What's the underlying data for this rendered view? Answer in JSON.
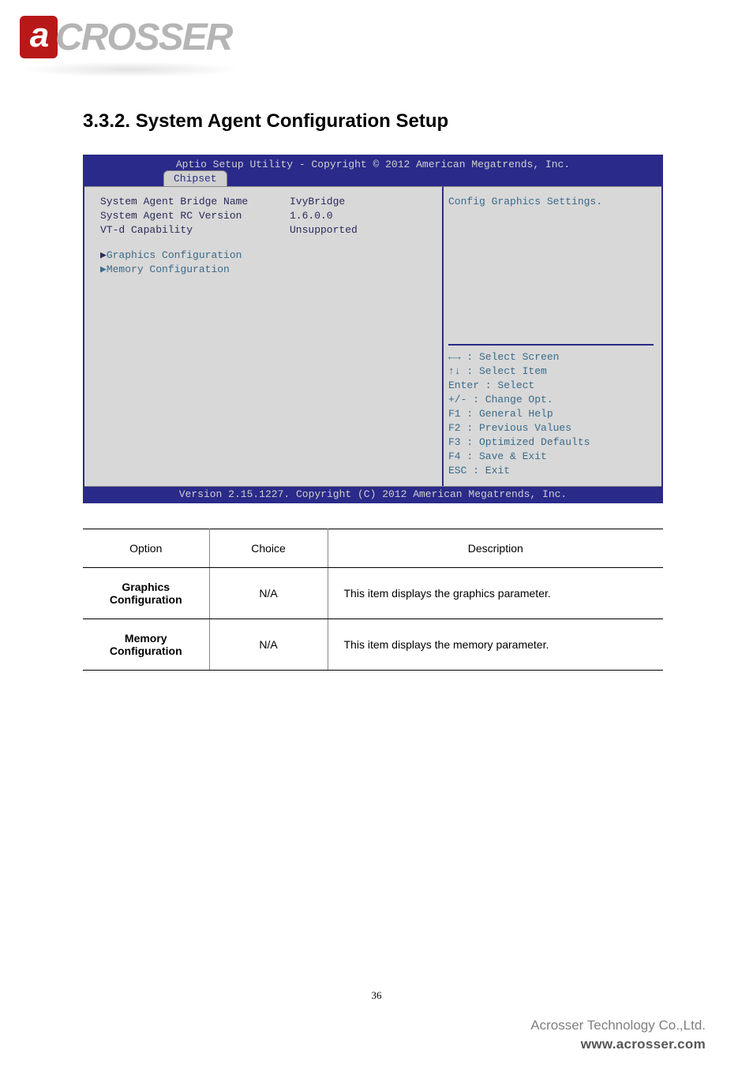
{
  "logo": {
    "letter": "a",
    "rest": "CROSSER"
  },
  "section": {
    "title": "3.3.2. System Agent Configuration Setup"
  },
  "bios": {
    "header": "Aptio Setup Utility - Copyright © 2012 American Megatrends, Inc.",
    "tab": "Chipset",
    "rows": [
      {
        "k": "System Agent Bridge Name",
        "v": "IvyBridge"
      },
      {
        "k": "System Agent RC Version",
        "v": "1.6.0.0"
      },
      {
        "k": "VT-d Capability",
        "v": "Unsupported"
      }
    ],
    "nav_items": [
      {
        "label": "Graphics Configuration",
        "selected": true
      },
      {
        "label": "Memory Configuration",
        "selected": false
      }
    ],
    "right_top": "Config Graphics Settings.",
    "help": [
      "←→ : Select Screen",
      "↑↓ : Select Item",
      "Enter : Select",
      "+/- : Change Opt.",
      "F1 : General Help",
      "F2 : Previous Values",
      "F3 : Optimized Defaults",
      "F4 : Save & Exit",
      "ESC : Exit"
    ],
    "footer": "Version 2.15.1227. Copyright (C) 2012 American Megatrends, Inc."
  },
  "options_table": {
    "headers": [
      "Option",
      "Choice",
      "Description"
    ],
    "col_widths": [
      "160px",
      "150px",
      "auto"
    ],
    "rows": [
      {
        "opt": "Graphics Configuration",
        "choice": "N/A",
        "desc": "This item displays the graphics parameter."
      },
      {
        "opt": "Memory Configuration",
        "choice": "N/A",
        "desc": "This item displays the memory parameter."
      }
    ]
  },
  "page_number": "36",
  "footer": {
    "company": "Acrosser Technology Co.,Ltd.",
    "www": "www.acrosser.com"
  },
  "colors": {
    "bios_frame": "#2a2a8a",
    "bios_body_bg": "#d8d8d8",
    "bios_nav": "#3a6a8a",
    "logo_red": "#b81818",
    "logo_gray": "#b5b5b5"
  }
}
